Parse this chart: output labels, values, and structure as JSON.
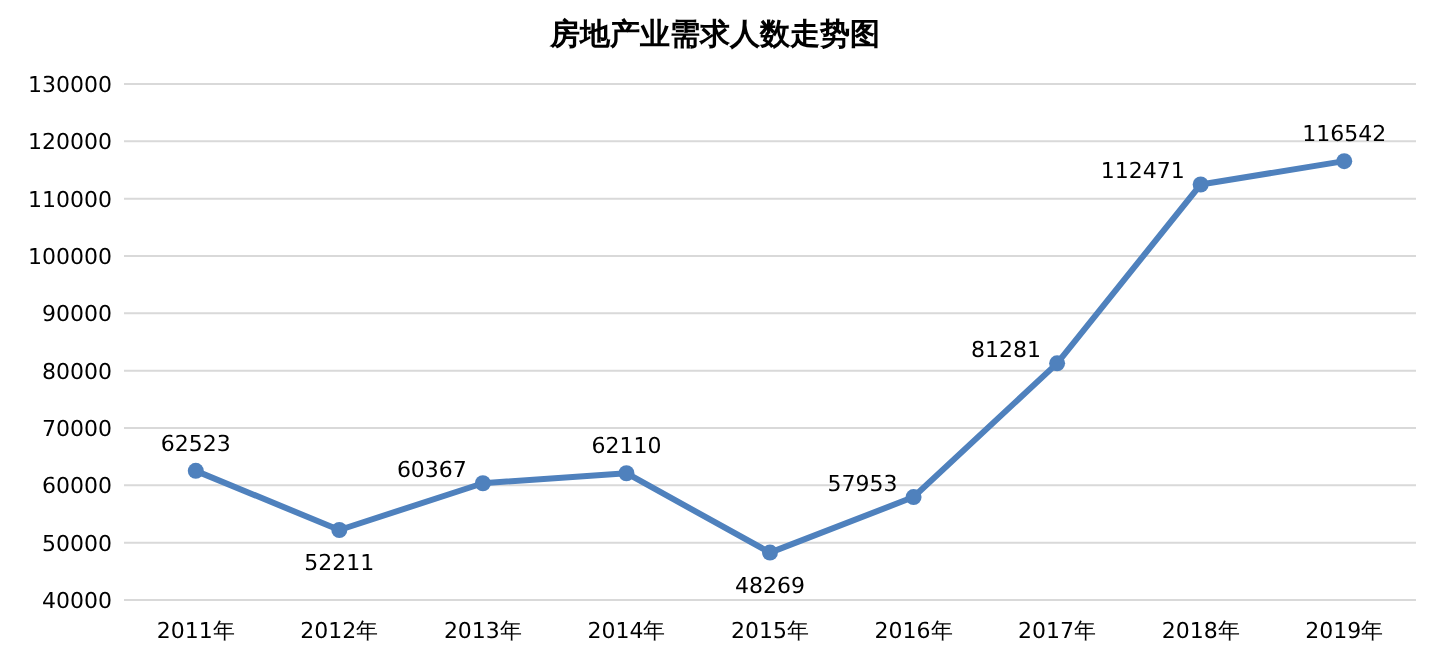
{
  "chart_data": {
    "type": "line",
    "title": "房地产业需求人数走势图",
    "categories": [
      "2011年",
      "2012年",
      "2013年",
      "2014年",
      "2015年",
      "2016年",
      "2017年",
      "2018年",
      "2019年"
    ],
    "series": [
      {
        "color": "#4f81bd",
        "values": [
          62523,
          52211,
          60367,
          62110,
          48269,
          57953,
          81281,
          112471,
          116542
        ]
      }
    ],
    "ylim": [
      40000,
      130000
    ],
    "yticks": [
      40000,
      50000,
      60000,
      70000,
      80000,
      90000,
      100000,
      110000,
      120000,
      130000
    ],
    "grid": "y",
    "marker": "circle",
    "line_style": "solid",
    "data_labels": true
  }
}
